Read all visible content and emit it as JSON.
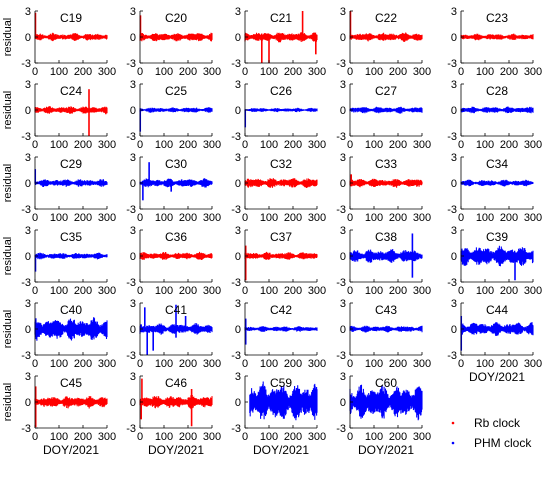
{
  "chart_data": {
    "type": "line",
    "xlabel": "DOY/2021",
    "ylabel": "residual",
    "xlim": [
      0,
      300
    ],
    "ylim": [
      -3,
      3
    ],
    "x_ticks": [
      "0",
      "100",
      "200",
      "300"
    ],
    "y_ticks": [
      "3",
      "0",
      "-3"
    ],
    "colors": {
      "rb": "#ff0000",
      "phm": "#0000ff"
    },
    "legend": {
      "placement": "bottom-right",
      "entries": [
        {
          "label": "Rb clock",
          "color": "#ff0000"
        },
        {
          "label": "PHM clock",
          "color": "#0000ff"
        }
      ]
    },
    "panels": [
      {
        "sat": "C19",
        "clock": "rb",
        "start": 0,
        "end": 300,
        "amp": 0.35,
        "spikes": [
          [
            2,
            2.8
          ]
        ]
      },
      {
        "sat": "C20",
        "clock": "rb",
        "start": 0,
        "end": 300,
        "amp": 0.4,
        "spikes": [
          [
            2,
            2.5
          ]
        ]
      },
      {
        "sat": "C21",
        "clock": "rb",
        "start": 0,
        "end": 300,
        "amp": 0.45,
        "spikes": [
          [
            70,
            -3
          ],
          [
            100,
            -3
          ],
          [
            240,
            3
          ],
          [
            295,
            -2
          ]
        ]
      },
      {
        "sat": "C22",
        "clock": "rb",
        "start": 0,
        "end": 300,
        "amp": 0.4,
        "spikes": [
          [
            2,
            3
          ]
        ]
      },
      {
        "sat": "C23",
        "clock": "rb",
        "start": 0,
        "end": 300,
        "amp": 0.3,
        "spikes": []
      },
      {
        "sat": "C24",
        "clock": "rb",
        "start": 0,
        "end": 300,
        "amp": 0.35,
        "spikes": [
          [
            225,
            2.4
          ],
          [
            225,
            -3
          ]
        ]
      },
      {
        "sat": "C25",
        "clock": "phm",
        "start": 0,
        "end": 300,
        "amp": 0.25,
        "spikes": [
          [
            1,
            -2.5
          ]
        ]
      },
      {
        "sat": "C26",
        "clock": "phm",
        "start": 0,
        "end": 300,
        "amp": 0.2,
        "spikes": [
          [
            1,
            -2
          ]
        ]
      },
      {
        "sat": "C27",
        "clock": "phm",
        "start": 0,
        "end": 300,
        "amp": 0.3,
        "spikes": []
      },
      {
        "sat": "C28",
        "clock": "phm",
        "start": 0,
        "end": 300,
        "amp": 0.3,
        "spikes": []
      },
      {
        "sat": "C29",
        "clock": "phm",
        "start": 0,
        "end": 300,
        "amp": 0.35,
        "spikes": [
          [
            1,
            1.6
          ]
        ]
      },
      {
        "sat": "C30",
        "clock": "phm",
        "start": 0,
        "end": 300,
        "amp": 0.4,
        "spikes": [
          [
            38,
            2.4
          ],
          [
            12,
            -2
          ],
          [
            130,
            -1
          ]
        ]
      },
      {
        "sat": "C32",
        "clock": "rb",
        "start": 0,
        "end": 300,
        "amp": 0.45,
        "spikes": []
      },
      {
        "sat": "C33",
        "clock": "rb",
        "start": 0,
        "end": 300,
        "amp": 0.4,
        "spikes": [
          [
            5,
            1
          ]
        ]
      },
      {
        "sat": "C34",
        "clock": "phm",
        "start": 0,
        "end": 300,
        "amp": 0.3,
        "spikes": []
      },
      {
        "sat": "C35",
        "clock": "phm",
        "start": 0,
        "end": 300,
        "amp": 0.3,
        "spikes": [
          [
            2,
            -1.8
          ]
        ]
      },
      {
        "sat": "C36",
        "clock": "rb",
        "start": 0,
        "end": 300,
        "amp": 0.35,
        "spikes": []
      },
      {
        "sat": "C37",
        "clock": "rb",
        "start": 0,
        "end": 300,
        "amp": 0.35,
        "spikes": [
          [
            3,
            -2.8
          ],
          [
            3,
            1.2
          ]
        ]
      },
      {
        "sat": "C38",
        "clock": "phm",
        "start": 0,
        "end": 300,
        "amp": 0.6,
        "spikes": [
          [
            260,
            2.6
          ],
          [
            260,
            -2.5
          ]
        ]
      },
      {
        "sat": "C39",
        "clock": "phm",
        "start": 0,
        "end": 300,
        "amp": 0.9,
        "spikes": [
          [
            225,
            -2.8
          ]
        ]
      },
      {
        "sat": "C40",
        "clock": "phm",
        "start": 0,
        "end": 300,
        "amp": 1.0,
        "spikes": [
          [
            235,
            1
          ],
          [
            235,
            -1.2
          ]
        ]
      },
      {
        "sat": "C41",
        "clock": "phm",
        "start": 0,
        "end": 300,
        "amp": 0.5,
        "spikes": [
          [
            20,
            2.5
          ],
          [
            30,
            -3
          ],
          [
            55,
            -2.5
          ],
          [
            150,
            2.8
          ],
          [
            150,
            -1
          ],
          [
            190,
            1.5
          ]
        ]
      },
      {
        "sat": "C42",
        "clock": "phm",
        "start": 0,
        "end": 300,
        "amp": 0.25,
        "spikes": [
          [
            3,
            -1.8
          ],
          [
            3,
            1.2
          ]
        ]
      },
      {
        "sat": "C43",
        "clock": "phm",
        "start": 0,
        "end": 300,
        "amp": 0.3,
        "spikes": []
      },
      {
        "sat": "C44",
        "clock": "phm",
        "start": 0,
        "end": 300,
        "amp": 0.6,
        "spikes": [
          [
            1,
            -2.5
          ],
          [
            1,
            1.5
          ]
        ]
      },
      {
        "sat": "C45",
        "clock": "rb",
        "start": 0,
        "end": 300,
        "amp": 0.55,
        "spikes": [
          [
            3,
            -2.9
          ],
          [
            3,
            1.8
          ]
        ]
      },
      {
        "sat": "C46",
        "clock": "rb",
        "start": 0,
        "end": 300,
        "amp": 0.6,
        "spikes": [
          [
            8,
            2.7
          ],
          [
            5,
            -2
          ],
          [
            215,
            -2.8
          ],
          [
            215,
            1.5
          ]
        ]
      },
      {
        "sat": "C59",
        "clock": "phm",
        "start": 20,
        "end": 300,
        "amp": 1.7,
        "spikes": []
      },
      {
        "sat": "C60",
        "clock": "phm",
        "start": 0,
        "end": 300,
        "amp": 1.5,
        "spikes": []
      }
    ]
  }
}
